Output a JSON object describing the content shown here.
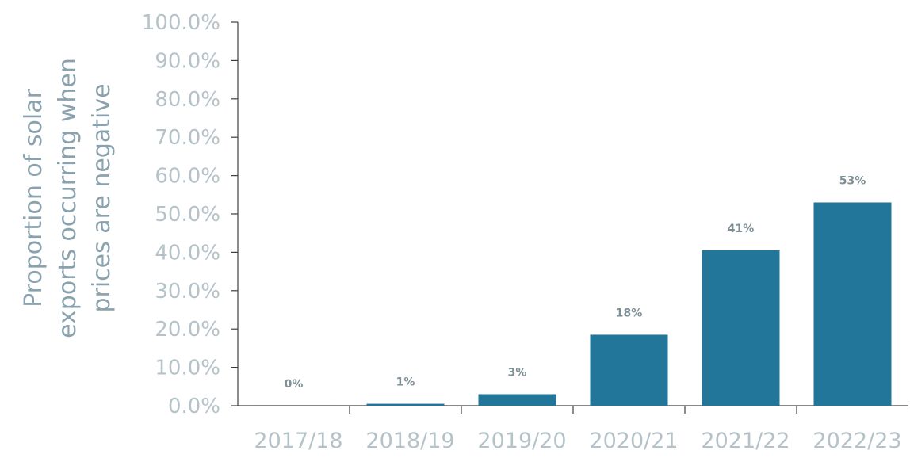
{
  "chart_data": {
    "type": "bar",
    "ylabel_lines": [
      "Proportion of solar",
      "exports occurring when",
      "prices are negative"
    ],
    "categories": [
      "2017/18",
      "2018/19",
      "2019/20",
      "2020/21",
      "2021/22",
      "2022/23"
    ],
    "values": [
      0.001,
      0.5,
      3,
      18.5,
      40.5,
      53
    ],
    "data_labels": [
      "0%",
      "1%",
      "3%",
      "18%",
      "41%",
      "53%"
    ],
    "ylim": [
      0,
      100
    ],
    "yticks": [
      "0.0%",
      "10.0%",
      "20.0%",
      "30.0%",
      "40.0%",
      "50.0%",
      "60.0%",
      "70.0%",
      "80.0%",
      "90.0%",
      "100.0%"
    ],
    "bar_color": "#21769a",
    "axis_color": "#404040",
    "grid": false
  }
}
